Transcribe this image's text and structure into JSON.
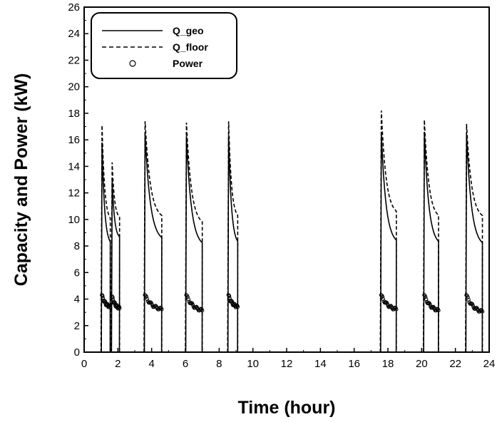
{
  "chart_data": {
    "type": "line",
    "title": "",
    "xlabel": "Time (hour)",
    "ylabel": "Capacity and Power (kW)",
    "xlim": [
      0,
      24
    ],
    "ylim": [
      0,
      26
    ],
    "x_ticks": [
      "0",
      "2",
      "4",
      "6",
      "8",
      "10",
      "12",
      "14",
      "16",
      "18",
      "20",
      "22",
      "24"
    ],
    "y_ticks": [
      "0",
      "2",
      "4",
      "6",
      "8",
      "10",
      "12",
      "14",
      "16",
      "18",
      "20",
      "22",
      "24",
      "26"
    ],
    "grid": false,
    "legend_position": "top-left",
    "cycles": [
      {
        "start": 1.0,
        "end": 1.55,
        "geo_peak": 15.8,
        "geo_end": 8.0,
        "floor_peak": 17.1,
        "floor_end": 9.8,
        "power_peak": 4.3,
        "power_end": 3.3
      },
      {
        "start": 1.6,
        "end": 2.1,
        "geo_peak": 13.0,
        "geo_end": 8.5,
        "floor_peak": 14.3,
        "floor_end": 10.0,
        "power_peak": 4.2,
        "power_end": 3.2
      },
      {
        "start": 3.55,
        "end": 4.6,
        "geo_peak": 16.5,
        "geo_end": 8.3,
        "floor_peak": 17.4,
        "floor_end": 10.0,
        "power_peak": 4.3,
        "power_end": 3.1
      },
      {
        "start": 6.0,
        "end": 7.0,
        "geo_peak": 16.3,
        "geo_end": 7.9,
        "floor_peak": 17.3,
        "floor_end": 9.5,
        "power_peak": 4.3,
        "power_end": 3.0
      },
      {
        "start": 8.5,
        "end": 9.1,
        "geo_peak": 16.3,
        "geo_end": 8.0,
        "floor_peak": 17.4,
        "floor_end": 10.0,
        "power_peak": 4.3,
        "power_end": 3.3
      },
      {
        "start": 17.55,
        "end": 18.5,
        "geo_peak": 16.5,
        "geo_end": 8.1,
        "floor_peak": 18.2,
        "floor_end": 10.3,
        "power_peak": 4.3,
        "power_end": 3.1
      },
      {
        "start": 20.1,
        "end": 21.0,
        "geo_peak": 16.6,
        "geo_end": 8.0,
        "floor_peak": 17.5,
        "floor_end": 10.0,
        "power_peak": 4.3,
        "power_end": 3.0
      },
      {
        "start": 22.6,
        "end": 23.6,
        "geo_peak": 16.4,
        "geo_end": 7.9,
        "floor_peak": 17.2,
        "floor_end": 10.0,
        "power_peak": 4.3,
        "power_end": 2.9
      }
    ],
    "series": [
      {
        "name": "Q_geo",
        "style": "solid",
        "color": "#000000"
      },
      {
        "name": "Q_floor",
        "style": "dashed",
        "color": "#000000"
      },
      {
        "name": "Power",
        "style": "circle-marker",
        "color": "#000000"
      }
    ]
  }
}
